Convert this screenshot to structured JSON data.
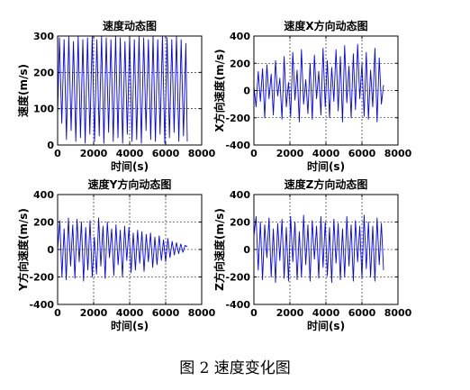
{
  "caption": "图 2  速度变化图",
  "chart_data": [
    {
      "type": "line",
      "title": "速度动态图",
      "xlabel": "时间(s)",
      "ylabel": "速度(m/s)",
      "xlim": [
        0,
        8000
      ],
      "ylim": [
        0,
        300
      ],
      "xticks": [
        0,
        2000,
        4000,
        6000,
        8000
      ],
      "yticks": [
        0,
        100,
        200,
        300
      ],
      "grid": true,
      "color": "#0000ff",
      "series": [
        {
          "x": [
            0,
            100,
            230,
            360,
            490,
            620,
            750,
            880,
            1010,
            1140,
            1270,
            1400,
            1530,
            1660,
            1790,
            1920,
            2050,
            2180,
            2310,
            2440,
            2570,
            2700,
            2830,
            2960,
            3090,
            3220,
            3350,
            3480,
            3610,
            3740,
            3870,
            4000,
            4130,
            4260,
            4390,
            4520,
            4650,
            4780,
            4910,
            5040,
            5170,
            5300,
            5430,
            5560,
            5690,
            5820,
            5950,
            6080,
            6210,
            6340,
            6470,
            6600,
            6730,
            6860,
            6990,
            7120,
            7200
          ],
          "y": [
            80,
            295,
            60,
            290,
            15,
            300,
            40,
            285,
            10,
            300,
            20,
            290,
            5,
            295,
            30,
            300,
            10,
            290,
            25,
            300,
            5,
            295,
            35,
            290,
            10,
            300,
            20,
            295,
            5,
            285,
            30,
            300,
            10,
            290,
            15,
            300,
            5,
            295,
            40,
            290,
            15,
            300,
            10,
            290,
            30,
            300,
            5,
            295,
            20,
            290,
            35,
            300,
            10,
            290,
            25,
            280,
            10
          ]
        }
      ]
    },
    {
      "type": "line",
      "title": "速度X方向动态图",
      "xlabel": "时间(s)",
      "ylabel": "X方向速度(m/s)",
      "xlim": [
        0,
        8000
      ],
      "ylim": [
        -400,
        400
      ],
      "xticks": [
        0,
        2000,
        4000,
        6000,
        8000
      ],
      "yticks": [
        -400,
        -200,
        0,
        200,
        400
      ],
      "grid": true,
      "color": "#0000ff",
      "series": [
        {
          "x": [
            0,
            120,
            240,
            360,
            480,
            600,
            720,
            840,
            960,
            1080,
            1200,
            1320,
            1440,
            1560,
            1680,
            1800,
            1920,
            2040,
            2160,
            2280,
            2400,
            2520,
            2640,
            2760,
            2880,
            3000,
            3120,
            3240,
            3360,
            3480,
            3600,
            3720,
            3840,
            3960,
            4080,
            4200,
            4320,
            4440,
            4560,
            4680,
            4800,
            4920,
            5040,
            5160,
            5280,
            5400,
            5520,
            5640,
            5760,
            5880,
            6000,
            6120,
            6240,
            6360,
            6480,
            6600,
            6720,
            6840,
            6960,
            7080,
            7200
          ],
          "y": [
            30,
            -120,
            140,
            -80,
            160,
            -200,
            190,
            -60,
            120,
            -180,
            220,
            -40,
            90,
            -210,
            250,
            -120,
            60,
            -190,
            280,
            -70,
            150,
            -230,
            300,
            -100,
            80,
            -170,
            200,
            -210,
            260,
            -60,
            140,
            -180,
            310,
            -120,
            220,
            -200,
            170,
            -80,
            300,
            -150,
            250,
            -230,
            330,
            -90,
            180,
            -200,
            270,
            -140,
            340,
            -60,
            200,
            -190,
            280,
            -210,
            150,
            -120,
            310,
            -230,
            240,
            -100,
            40
          ]
        }
      ]
    },
    {
      "type": "line",
      "title": "速度Y方向动态图",
      "xlabel": "时间(s)",
      "ylabel": "Y方向速度(m/s)",
      "xlim": [
        0,
        8000
      ],
      "ylim": [
        -400,
        400
      ],
      "xticks": [
        0,
        2000,
        4000,
        6000,
        8000
      ],
      "yticks": [
        -400,
        -200,
        0,
        200,
        400
      ],
      "grid": true,
      "color": "#0000ff",
      "series": [
        {
          "x": [
            0,
            120,
            240,
            360,
            480,
            600,
            720,
            840,
            960,
            1080,
            1200,
            1320,
            1440,
            1560,
            1680,
            1800,
            1920,
            2040,
            2160,
            2280,
            2400,
            2520,
            2640,
            2760,
            2880,
            3000,
            3120,
            3240,
            3360,
            3480,
            3600,
            3720,
            3840,
            3960,
            4080,
            4200,
            4320,
            4440,
            4560,
            4680,
            4800,
            4920,
            5040,
            5160,
            5280,
            5400,
            5520,
            5640,
            5760,
            5880,
            6000,
            6120,
            6240,
            6360,
            6480,
            6600,
            6720,
            6840,
            6960,
            7080,
            7200
          ],
          "y": [
            0,
            210,
            -200,
            150,
            -220,
            230,
            -120,
            180,
            -210,
            220,
            -90,
            200,
            -230,
            160,
            -150,
            210,
            -200,
            90,
            -180,
            230,
            -120,
            170,
            -210,
            200,
            -60,
            150,
            -190,
            180,
            -110,
            140,
            -200,
            170,
            -80,
            160,
            -170,
            120,
            -150,
            140,
            -100,
            130,
            -160,
            110,
            -90,
            120,
            -130,
            90,
            -110,
            100,
            -80,
            70,
            -90,
            80,
            -60,
            60,
            -40,
            50,
            -30,
            40,
            -20,
            30,
            20
          ]
        }
      ]
    },
    {
      "type": "line",
      "title": "速度Z方向动态图",
      "xlabel": "时间(s)",
      "ylabel": "Z方向速度(m/s)",
      "xlim": [
        0,
        8000
      ],
      "ylim": [
        -400,
        400
      ],
      "xticks": [
        0,
        2000,
        4000,
        6000,
        8000
      ],
      "yticks": [
        -400,
        -200,
        0,
        200,
        400
      ],
      "grid": true,
      "color": "#0000ff",
      "series": [
        {
          "x": [
            0,
            120,
            240,
            360,
            480,
            600,
            720,
            840,
            960,
            1080,
            1200,
            1320,
            1440,
            1560,
            1680,
            1800,
            1920,
            2040,
            2160,
            2280,
            2400,
            2520,
            2640,
            2760,
            2880,
            3000,
            3120,
            3240,
            3360,
            3480,
            3600,
            3720,
            3840,
            3960,
            4080,
            4200,
            4320,
            4440,
            4560,
            4680,
            4800,
            4920,
            5040,
            5160,
            5280,
            5400,
            5520,
            5640,
            5760,
            5880,
            6000,
            6120,
            6240,
            6360,
            6480,
            6600,
            6720,
            6840,
            6960,
            7080,
            7200
          ],
          "y": [
            100,
            240,
            -150,
            200,
            -220,
            180,
            -60,
            230,
            -200,
            150,
            -240,
            190,
            -80,
            220,
            -210,
            160,
            -230,
            240,
            -90,
            200,
            -220,
            130,
            -200,
            250,
            -110,
            180,
            -230,
            210,
            -70,
            170,
            -210,
            240,
            -130,
            200,
            -190,
            160,
            -240,
            220,
            -100,
            190,
            -220,
            150,
            -200,
            240,
            -120,
            180,
            -230,
            210,
            -90,
            170,
            -210,
            250,
            -140,
            200,
            -200,
            170,
            -230,
            230,
            -110,
            190,
            -150
          ]
        }
      ]
    }
  ]
}
